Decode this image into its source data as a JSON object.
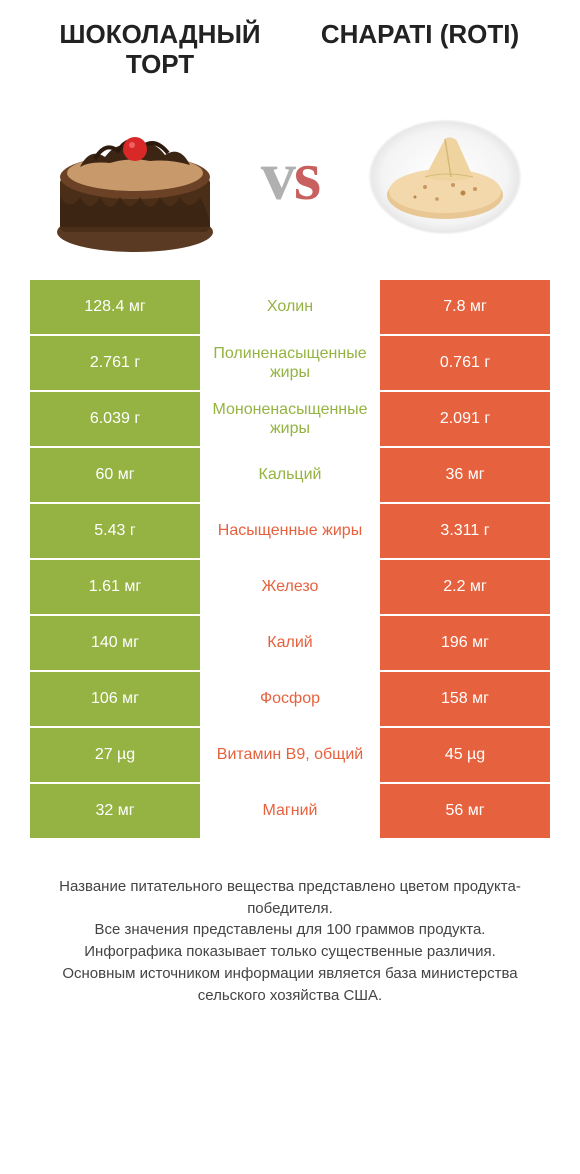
{
  "colors": {
    "green": "#95b342",
    "orange": "#e6623e",
    "mid_green": "#95b342",
    "mid_orange": "#e6623e",
    "text": "#333333",
    "footer_text": "#444444",
    "vs_gray": "#b0b0b0",
    "vs_red": "#c86060"
  },
  "header": {
    "left_title": "ШОКОЛАДНЫЙ ТОРТ",
    "right_title": "CHAPATI (ROTI)"
  },
  "vs_label": "vs",
  "rows": [
    {
      "left": "128.4 мг",
      "label": "Холин",
      "right": "7.8 мг",
      "winner": "left"
    },
    {
      "left": "2.761 г",
      "label": "Полиненасыщенные жиры",
      "right": "0.761 г",
      "winner": "left"
    },
    {
      "left": "6.039 г",
      "label": "Мононенасыщенные жиры",
      "right": "2.091 г",
      "winner": "left"
    },
    {
      "left": "60 мг",
      "label": "Кальций",
      "right": "36 мг",
      "winner": "left"
    },
    {
      "left": "5.43 г",
      "label": "Насыщенные жиры",
      "right": "3.311 г",
      "winner": "right"
    },
    {
      "left": "1.61 мг",
      "label": "Железо",
      "right": "2.2 мг",
      "winner": "right"
    },
    {
      "left": "140 мг",
      "label": "Калий",
      "right": "196 мг",
      "winner": "right"
    },
    {
      "left": "106 мг",
      "label": "Фосфор",
      "right": "158 мг",
      "winner": "right"
    },
    {
      "left": "27 µg",
      "label": "Витамин B9, общий",
      "right": "45 µg",
      "winner": "right"
    },
    {
      "left": "32 мг",
      "label": "Магний",
      "right": "56 мг",
      "winner": "right"
    }
  ],
  "footer": {
    "line1": "Название питательного вещества представлено цветом продукта-победителя.",
    "line2": "Все значения представлены для 100 граммов продукта.",
    "line3": "Инфографика показывает только существенные различия.",
    "line4": "Основным источником информации является база министерства сельского хозяйства США."
  }
}
